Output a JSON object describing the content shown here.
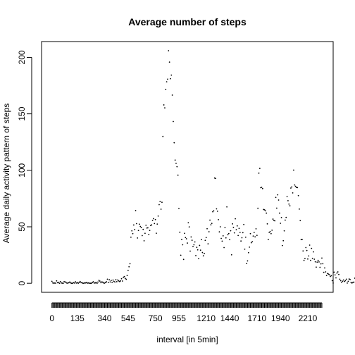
{
  "chart_data": {
    "type": "scatter",
    "title": "Average number of steps",
    "xlabel": "interval [in 5min]",
    "ylabel": "Average daily activity pattern of steps",
    "xlim": [
      -11,
      299
    ],
    "ylim": [
      -8,
      214
    ],
    "x_tick_indices": [
      0,
      27,
      56,
      81,
      110,
      135,
      164,
      189,
      218,
      243,
      272
    ],
    "x_tick_labels": [
      "0",
      "135",
      "340",
      "545",
      "750",
      "955",
      "1210",
      "1440",
      "1710",
      "1940",
      "2210"
    ],
    "y_ticks": [
      0,
      50,
      100,
      150,
      200
    ],
    "x_minor_ticks_count": 288,
    "point_marker": ".",
    "values": [
      1.7,
      0.3,
      0.1,
      0.2,
      0.1,
      2.1,
      0.5,
      0.9,
      0.0,
      1.5,
      0.3,
      0.1,
      0.0,
      1.4,
      1.2,
      0.9,
      0.1,
      0.2,
      0.5,
      1.1,
      0.3,
      0.0,
      0.0,
      0.5,
      0.2,
      1.3,
      0.2,
      0.8,
      0.0,
      0.6,
      1.6,
      0.5,
      0.5,
      0.0,
      0.0,
      0.4,
      0.3,
      0.7,
      0.1,
      0.3,
      0.0,
      0.0,
      0.0,
      0.7,
      1.3,
      0.2,
      0.3,
      0.8,
      0.0,
      1.1,
      2.6,
      1.9,
      0.5,
      1.2,
      1.0,
      0.3,
      0.1,
      0.7,
      1.3,
      3.6,
      0.7,
      3.1,
      1.2,
      2.5,
      0.8,
      2.8,
      1.6,
      1.1,
      3.1,
      1.4,
      2.9,
      2.1,
      1.5,
      2.1,
      4.0,
      2.0,
      5.3,
      5.9,
      4.3,
      3.5,
      6.9,
      11.3,
      14.6,
      17.3,
      40.8,
      46.4,
      43.9,
      51.6,
      47.6,
      64.3,
      52.8,
      40.1,
      46.7,
      52.3,
      50.3,
      49.4,
      42.2,
      47.7,
      37.6,
      44.2,
      51.4,
      48.9,
      49.1,
      43.3,
      46.8,
      51.1,
      51.7,
      55.7,
      57.2,
      52.9,
      56.4,
      44.3,
      52.4,
      59.5,
      69.6,
      72.3,
      65.6,
      71.7,
      130.0,
      157.9,
      155.3,
      171.5,
      178.4,
      180.7,
      205.9,
      195.8,
      181.1,
      184.3,
      166.6,
      143.2,
      124.4,
      109.1,
      106.2,
      103.2,
      95.7,
      66.2,
      45.2,
      24.8,
      38.8,
      34.1,
      21.1,
      44.2,
      40.5,
      39.4,
      35.6,
      53.6,
      49.9,
      28.5,
      41.0,
      38.1,
      32.6,
      34.1,
      36.6,
      24.5,
      31.8,
      29.6,
      21.8,
      33.5,
      29.3,
      38.7,
      27.2,
      24.3,
      26.4,
      38.0,
      40.5,
      48.3,
      34.9,
      45.6,
      55.9,
      51.8,
      53.0,
      63.3,
      64.2,
      93.2,
      92.8,
      65.9,
      63.8,
      56.3,
      45.5,
      50.0,
      39.7,
      37.3,
      42.0,
      31.6,
      49.3,
      40.2,
      67.6,
      43.0,
      44.0,
      38.6,
      46.5,
      25.2,
      52.6,
      49.5,
      44.6,
      57.1,
      47.4,
      50.8,
      42.3,
      48.6,
      45.0,
      37.4,
      40.3,
      44.8,
      52.0,
      30.2,
      40.8,
      17.5,
      19.8,
      27.1,
      32.0,
      43.9,
      35.9,
      36.9,
      41.8,
      45.0,
      41.1,
      48.2,
      42.4,
      66.4,
      97.5,
      101.7,
      84.6,
      85.0,
      83.8,
      65.3,
      65.0,
      64.2,
      62.1,
      52.6,
      38.8,
      45.1,
      45.7,
      43.9,
      47.0,
      56.8,
      55.6,
      55.3,
      76.0,
      66.5,
      78.3,
      73.7,
      62.1,
      53.1,
      58.2,
      33.4,
      37.7,
      46.4,
      55.9,
      58.3,
      76.8,
      73.1,
      70.1,
      68.6,
      84.3,
      85.3,
      80.0,
      100.2,
      87.0,
      85.8,
      84.8,
      84.7,
      77.6,
      65.7,
      55.5,
      38.7,
      38.8,
      28.6,
      20.3,
      21.9,
      31.6,
      29.0,
      21.5,
      24.2,
      33.8,
      20.3,
      30.9,
      22.1,
      27.8,
      21.3,
      19.0,
      14.3,
      18.7,
      20.3,
      18.9,
      14.1,
      17.2,
      22.3,
      17.3,
      9.7,
      13.6,
      10.1,
      6.8,
      8.7,
      8.1,
      7.5,
      6.0,
      6.7,
      2.3,
      0.2,
      9.8,
      7.4,
      4.8,
      9.0,
      10.1,
      7.8,
      3.6,
      2.3,
      0.8,
      1.8,
      2.9,
      1.6,
      2.3,
      3.6,
      0.2,
      1.7,
      3.8,
      3.3,
      0.7,
      0.2,
      0.8,
      1.0,
      4.5,
      5.0,
      3.2,
      2.6,
      0.6,
      1.0,
      1.1
    ]
  }
}
